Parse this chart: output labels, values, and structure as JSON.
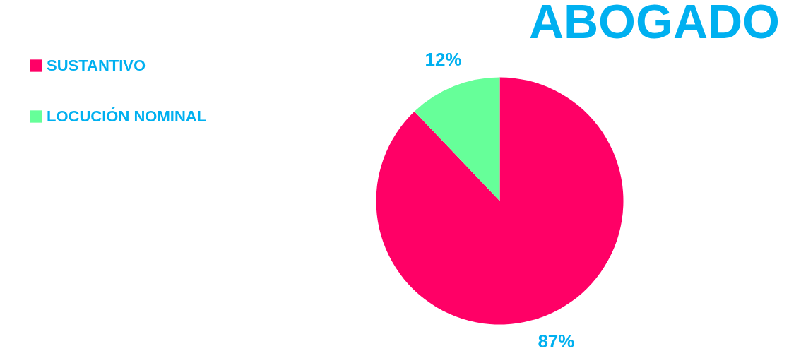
{
  "chart_data": {
    "type": "pie",
    "title": "ABOGADO",
    "categories": [
      "SUSTANTIVO",
      "LOCUCIÓN NOMINAL"
    ],
    "values": [
      87,
      12
    ],
    "colors": [
      "#ff0066",
      "#66ff99"
    ],
    "value_labels": [
      "87%",
      "12%"
    ],
    "legend": "left"
  }
}
